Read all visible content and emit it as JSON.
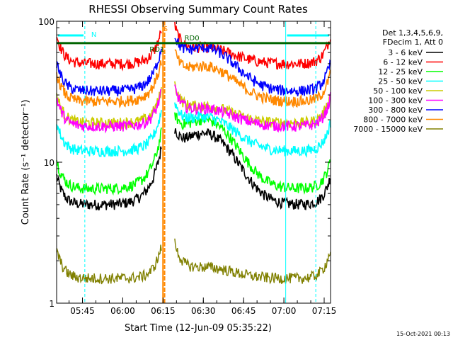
{
  "chart_data": {
    "type": "line",
    "title": "RHESSI Observing Summary Count Rates",
    "xlabel": "Start Time (12-Jun-09 05:35:22)",
    "ylabel": "Count Rate (s⁻¹ detector⁻¹)",
    "yscale": "log",
    "ylim": [
      1,
      100
    ],
    "xlim_minutes": [
      0,
      102
    ],
    "x_ticks": [
      {
        "label": "05:45",
        "t": 9.63
      },
      {
        "label": "06:00",
        "t": 24.63
      },
      {
        "label": "06:15",
        "t": 39.63
      },
      {
        "label": "06:30",
        "t": 54.63
      },
      {
        "label": "06:45",
        "t": 69.63
      },
      {
        "label": "07:00",
        "t": 84.63
      },
      {
        "label": "07:15",
        "t": 99.63
      }
    ],
    "y_ticks": [
      {
        "label": "100",
        "v": 100
      },
      {
        "label": "10",
        "v": 10
      },
      {
        "label": "1",
        "v": 1
      }
    ],
    "legend": {
      "placement": "right",
      "header": [
        "Det 1,3,4,5,6,9,",
        "FDecim 1, Att 0"
      ]
    },
    "series": [
      {
        "name": "3 - 6 keV",
        "color": "#000000",
        "dayMin": 5.0,
        "dayPeak": 16
      },
      {
        "name": "6 - 12 keV",
        "color": "#ff0000",
        "dayMin": 50,
        "dayPeak": 65
      },
      {
        "name": "12 - 25 keV",
        "color": "#00ff00",
        "dayMin": 6.5,
        "dayPeak": 20
      },
      {
        "name": "25 - 50 keV",
        "color": "#00ffff",
        "dayMin": 12,
        "dayPeak": 21
      },
      {
        "name": "50 - 100 keV",
        "color": "#cccc00",
        "dayMin": 19,
        "dayPeak": 25
      },
      {
        "name": "100 - 300 keV",
        "color": "#ff00ff",
        "dayMin": 18,
        "dayPeak": 24
      },
      {
        "name": "300 - 800 keV",
        "color": "#0000ff",
        "dayMin": 32,
        "dayPeak": 65
      },
      {
        "name": "800 - 7000 keV",
        "color": "#ff8800",
        "dayMin": 27,
        "dayPeak": 48
      },
      {
        "name": "7000 - 15000 keV",
        "color": "#808000",
        "dayMin": 1.5,
        "dayPeak": 1.8
      }
    ],
    "day_intervals_minutes": [
      [
        0,
        39
      ],
      [
        44,
        102
      ]
    ],
    "annotations": [
      {
        "label": "N",
        "kind": "night",
        "color": "#00ffff",
        "t": 1.8
      },
      {
        "label": "S",
        "kind": "saa",
        "color": "#ff8800",
        "t": 39.7
      },
      {
        "label": "RD1",
        "kind": "radiation",
        "color": "#006400",
        "t": 40.4
      },
      {
        "label": "RD0",
        "kind": "radiation",
        "color": "#006400",
        "t": 47.6
      }
    ],
    "attenuator_level": 70,
    "attenuator_color": "#006400",
    "event_markers_minutes": {
      "cyan_dashed": [
        10.5,
        96.5
      ],
      "cyan_solid": [
        85.3
      ],
      "orange": [
        39.6,
        40.2
      ]
    }
  },
  "footer_date": "15-Oct-2021 00:13"
}
